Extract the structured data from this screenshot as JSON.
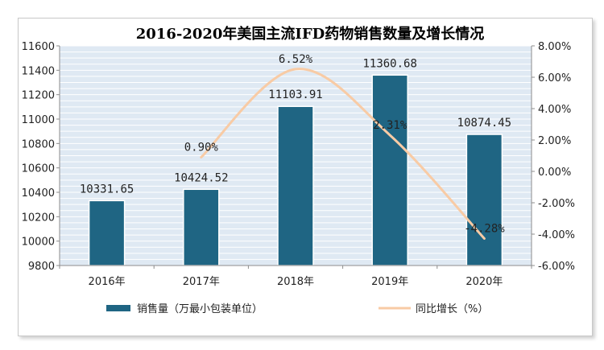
{
  "chart_data": {
    "type": "bar",
    "title": "2016-2020年美国主流IFD药物销售数量及增长情况",
    "categories": [
      "2016年",
      "2017年",
      "2018年",
      "2019年",
      "2020年"
    ],
    "series": [
      {
        "name": "销售量（万最小包装单位）",
        "type": "bar",
        "axis": "left",
        "color": "#1f6583",
        "values": [
          10331.65,
          10424.52,
          11103.91,
          11360.68,
          10874.45
        ],
        "labels": [
          "10331.65",
          "10424.52",
          "11103.91",
          "11360.68",
          "10874.45"
        ]
      },
      {
        "name": "同比增长（%）",
        "type": "line",
        "axis": "right",
        "color": "#f8cba5",
        "values": [
          null,
          0.9,
          6.52,
          2.31,
          -4.28
        ],
        "labels": [
          "",
          "0.90%",
          "6.52%",
          "2.31%",
          "-4.28%"
        ]
      }
    ],
    "y_left": {
      "ylim": [
        9800,
        11600
      ],
      "ticks": [
        9800,
        10000,
        10200,
        10400,
        10600,
        10800,
        11000,
        11200,
        11400,
        11600
      ],
      "tick_labels": [
        "9800",
        "10000",
        "10200",
        "10400",
        "10600",
        "10800",
        "11000",
        "11200",
        "11400",
        "11600"
      ]
    },
    "y_right": {
      "ylim": [
        -6,
        8
      ],
      "ticks": [
        -6,
        -4,
        -2,
        0,
        2,
        4,
        6,
        8
      ],
      "tick_labels": [
        "-6.00%",
        "-4.00%",
        "-2.00%",
        "0.00%",
        "2.00%",
        "4.00%",
        "6.00%",
        "8.00%"
      ]
    },
    "grid": true,
    "legend_position": "bottom"
  }
}
